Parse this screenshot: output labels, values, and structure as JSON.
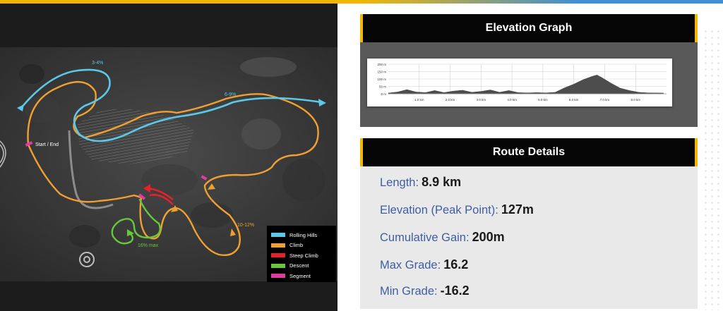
{
  "colors": {
    "rolling_hills": "#5bc8e8",
    "climb": "#f0a030",
    "steep_climb": "#e8202a",
    "descent": "#66c83a",
    "segment": "#e03ca0"
  },
  "map": {
    "labels": {
      "start_end": "Start / End",
      "grade_top": "3-4%",
      "grade_mid": "6-9%",
      "grade_right": "10-12%",
      "descent_grade": "16% max"
    },
    "legend": [
      {
        "label": "Rolling Hills",
        "color": "#5bc8e8"
      },
      {
        "label": "Climb",
        "color": "#f0a030"
      },
      {
        "label": "Steep Climb",
        "color": "#e8202a"
      },
      {
        "label": "Descent",
        "color": "#66c83a"
      },
      {
        "label": "Segment",
        "color": "#e03ca0"
      }
    ]
  },
  "elevation": {
    "title": "Elevation Graph",
    "chart_data": {
      "type": "area",
      "x": [
        0,
        0.3,
        0.6,
        0.9,
        1.2,
        1.5,
        1.8,
        2.1,
        2.4,
        2.7,
        3.0,
        3.3,
        3.6,
        3.9,
        4.2,
        4.5,
        4.8,
        5.1,
        5.4,
        5.7,
        6.0,
        6.3,
        6.6,
        6.75,
        6.9,
        7.2,
        7.5,
        7.8,
        8.1,
        8.4,
        8.9
      ],
      "y": [
        5,
        12,
        28,
        12,
        8,
        22,
        8,
        18,
        24,
        10,
        16,
        26,
        10,
        22,
        8,
        6,
        8,
        6,
        10,
        40,
        65,
        95,
        118,
        127,
        110,
        72,
        38,
        22,
        10,
        6,
        5
      ],
      "xticks": [
        "1.0 km",
        "2.0 km",
        "3.0 km",
        "4.0 km",
        "5.0 km",
        "6.0 km",
        "7.0 km",
        "8.0 km"
      ],
      "xtick_values": [
        1,
        2,
        3,
        4,
        5,
        6,
        7,
        8
      ],
      "yticks": [
        "200 m",
        "150 m",
        "100 m",
        "50 m",
        "0 m"
      ],
      "ytick_values": [
        200,
        150,
        100,
        50,
        0
      ],
      "xlim": [
        0,
        9
      ],
      "ylim": [
        0,
        200
      ],
      "grid": true
    }
  },
  "route": {
    "title": "Route Details",
    "rows": [
      {
        "label": "Length:",
        "value": "8.9 km"
      },
      {
        "label": "Elevation (Peak Point):",
        "value": "127m"
      },
      {
        "label": "Cumulative Gain:",
        "value": "200m"
      },
      {
        "label": "Max Grade:",
        "value": "16.2"
      },
      {
        "label": "Min Grade:",
        "value": "-16.2"
      }
    ]
  }
}
